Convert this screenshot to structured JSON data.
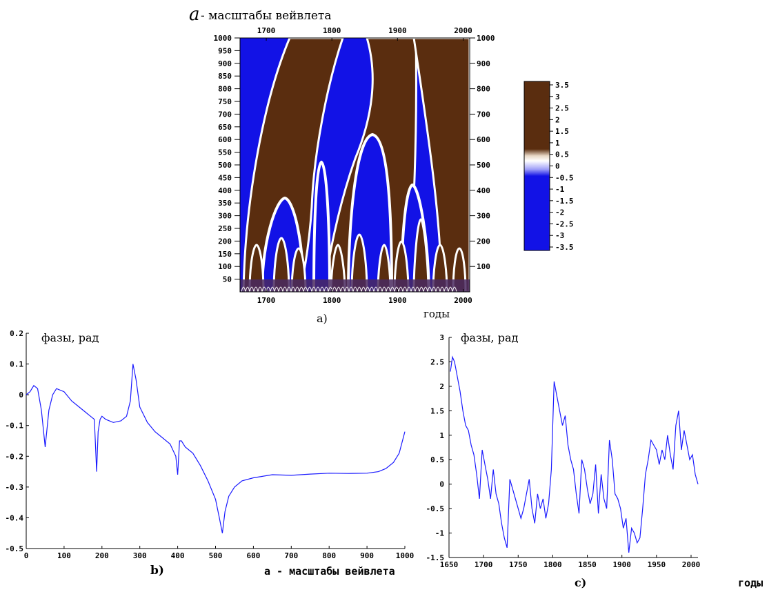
{
  "chart_data": [
    {
      "id": "a",
      "type": "heatmap",
      "title": "- масштабы вейвлета",
      "title_symbol": "a",
      "caption": "a)",
      "xlabel": "годы",
      "x_ticks": [
        "1700",
        "1800",
        "1900",
        "2000"
      ],
      "xlim": [
        1660,
        2010
      ],
      "y_ticks_left": [
        "1000",
        "950",
        "900",
        "850",
        "800",
        "750",
        "700",
        "650",
        "600",
        "550",
        "500",
        "450",
        "400",
        "350",
        "300",
        "250",
        "200",
        "150",
        "100",
        "50"
      ],
      "y_ticks_right": [
        "1000",
        "900",
        "800",
        "700",
        "600",
        "500",
        "400",
        "300",
        "200",
        "100"
      ],
      "ylim": [
        0,
        1000
      ],
      "colorbar": {
        "ticks": [
          "3.5",
          "3",
          "2.5",
          "2",
          "1.5",
          "1",
          "0.5",
          "0",
          "-0.5",
          "-1",
          "-1.5",
          "-2",
          "-2.5",
          "-3",
          "-3.5"
        ],
        "range": [
          -3.5,
          3.5
        ],
        "colors": {
          "positive": "#5a2d0f",
          "negative": "#1212e6",
          "zero": "#ffffff"
        }
      }
    },
    {
      "id": "b",
      "type": "line",
      "title": "фазы, рад",
      "caption": "b)",
      "xlabel": "а - масштабы вейвлета",
      "x_ticks": [
        "0",
        "100",
        "200",
        "300",
        "400",
        "500",
        "600",
        "700",
        "800",
        "900",
        "1000"
      ],
      "xlim": [
        0,
        1000
      ],
      "y_ticks": [
        "0.2",
        "0.1",
        "0",
        "-0.1",
        "-0.2",
        "-0.3",
        "-0.4",
        "-0.5"
      ],
      "ylim": [
        -0.5,
        0.2
      ],
      "color": "#1a1aff",
      "series": [
        {
          "x": [
            0,
            10,
            20,
            30,
            40,
            50,
            60,
            70,
            80,
            100,
            120,
            140,
            160,
            180,
            186,
            190,
            195,
            200,
            210,
            230,
            250,
            265,
            275,
            282,
            290,
            300,
            320,
            340,
            360,
            380,
            395,
            400,
            405,
            410,
            420,
            440,
            460,
            480,
            500,
            510,
            518,
            525,
            535,
            550,
            570,
            600,
            650,
            700,
            750,
            800,
            850,
            900,
            930,
            950,
            970,
            985,
            1000
          ],
          "y": [
            0.0,
            0.01,
            0.03,
            0.02,
            -0.05,
            -0.17,
            -0.05,
            0.0,
            0.02,
            0.01,
            -0.02,
            -0.04,
            -0.06,
            -0.08,
            -0.25,
            -0.12,
            -0.08,
            -0.07,
            -0.08,
            -0.09,
            -0.085,
            -0.07,
            -0.02,
            0.1,
            0.05,
            -0.04,
            -0.09,
            -0.12,
            -0.14,
            -0.16,
            -0.2,
            -0.26,
            -0.15,
            -0.15,
            -0.17,
            -0.19,
            -0.23,
            -0.28,
            -0.34,
            -0.4,
            -0.45,
            -0.38,
            -0.33,
            -0.3,
            -0.28,
            -0.27,
            -0.26,
            -0.262,
            -0.258,
            -0.255,
            -0.256,
            -0.255,
            -0.25,
            -0.24,
            -0.22,
            -0.19,
            -0.12
          ]
        }
      ]
    },
    {
      "id": "c",
      "type": "line",
      "title": "фазы, рад",
      "caption": "c)",
      "xlabel": "годы",
      "x_ticks": [
        "1650",
        "1700",
        "1750",
        "1800",
        "1850",
        "1900",
        "1950",
        "2000"
      ],
      "xlim": [
        1650,
        2010
      ],
      "y_ticks": [
        "3",
        "2.5",
        "2",
        "1.5",
        "1",
        "0.5",
        "0",
        "-0.5",
        "-1",
        "-1.5"
      ],
      "ylim": [
        -1.5,
        3
      ],
      "color": "#1a1aff",
      "series": [
        {
          "x": [
            1652,
            1655,
            1658,
            1662,
            1666,
            1670,
            1674,
            1678,
            1682,
            1686,
            1690,
            1694,
            1698,
            1702,
            1706,
            1710,
            1714,
            1718,
            1722,
            1726,
            1730,
            1734,
            1738,
            1742,
            1746,
            1750,
            1754,
            1758,
            1762,
            1766,
            1770,
            1774,
            1778,
            1782,
            1786,
            1790,
            1794,
            1798,
            1802,
            1806,
            1810,
            1814,
            1818,
            1822,
            1826,
            1830,
            1834,
            1838,
            1842,
            1846,
            1850,
            1854,
            1858,
            1862,
            1866,
            1870,
            1874,
            1878,
            1882,
            1886,
            1890,
            1894,
            1898,
            1902,
            1906,
            1910,
            1914,
            1918,
            1922,
            1926,
            1930,
            1934,
            1938,
            1942,
            1946,
            1950,
            1954,
            1958,
            1962,
            1966,
            1970,
            1974,
            1978,
            1982,
            1986,
            1990,
            1994,
            1998,
            2002,
            2006,
            2010
          ],
          "y": [
            2.3,
            2.6,
            2.5,
            2.2,
            1.9,
            1.5,
            1.2,
            1.1,
            0.8,
            0.6,
            0.2,
            -0.3,
            0.7,
            0.4,
            0.1,
            -0.3,
            0.3,
            -0.2,
            -0.4,
            -0.8,
            -1.1,
            -1.3,
            0.1,
            -0.1,
            -0.3,
            -0.5,
            -0.7,
            -0.5,
            -0.2,
            0.1,
            -0.5,
            -0.8,
            -0.2,
            -0.5,
            -0.3,
            -0.7,
            -0.4,
            0.3,
            2.1,
            1.8,
            1.5,
            1.2,
            1.4,
            0.8,
            0.5,
            0.3,
            -0.2,
            -0.6,
            0.5,
            0.3,
            -0.1,
            -0.4,
            -0.2,
            0.4,
            -0.6,
            0.2,
            -0.3,
            -0.5,
            0.9,
            0.5,
            -0.2,
            -0.3,
            -0.5,
            -0.9,
            -0.7,
            -1.4,
            -0.9,
            -1.0,
            -1.2,
            -1.1,
            -0.5,
            0.2,
            0.5,
            0.9,
            0.8,
            0.7,
            0.4,
            0.7,
            0.5,
            1.0,
            0.6,
            0.3,
            1.2,
            1.5,
            0.7,
            1.1,
            0.8,
            0.5,
            0.6,
            0.2,
            0.0
          ]
        }
      ]
    }
  ]
}
